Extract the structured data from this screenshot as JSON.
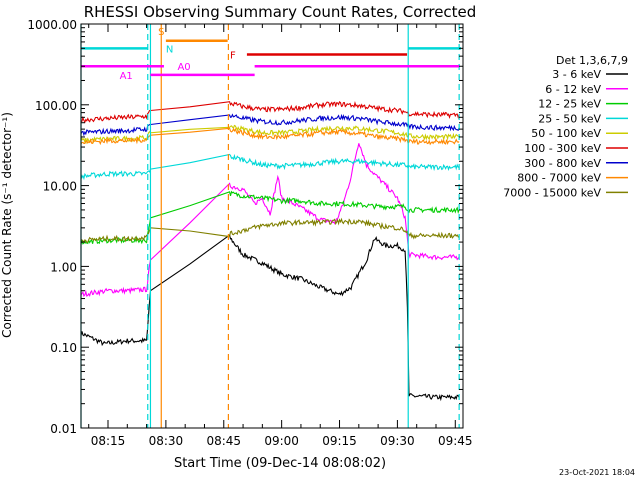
{
  "chart_data": {
    "type": "line",
    "title": "RHESSI Observing Summary Count Rates, Corrected",
    "xlabel": "Start Time (09-Dec-14 08:08:02)",
    "ylabel": "Corrected Count Rate (s⁻¹ detector⁻¹)",
    "yscale": "log",
    "ylim": [
      0.01,
      1000
    ],
    "xlim_minutes_after_0800": [
      8.0,
      107.0
    ],
    "x_ticks": [
      "08:15",
      "08:30",
      "08:45",
      "09:00",
      "09:15",
      "09:30",
      "09:45"
    ],
    "x_ticks_min": [
      15,
      30,
      45,
      60,
      75,
      90,
      105
    ],
    "y_ticks": [
      "0.01",
      "0.10",
      "1.00",
      "10.00",
      "100.00",
      "1000.00"
    ],
    "y_ticks_val": [
      0.01,
      0.1,
      1,
      10,
      100,
      1000
    ],
    "legend_title": "Det 1,3,6,7,9",
    "legend_position": "right",
    "footer_date": "23-Oct-2021 18:04",
    "flags": [
      {
        "label": "",
        "color": "#00d8d8",
        "level": 500,
        "spans": [
          [
            8.0,
            25.3
          ],
          [
            92.8,
            106.5
          ]
        ]
      },
      {
        "label": "S",
        "color": "#ff8800",
        "level": 620,
        "spans": [
          [
            30.0,
            46.0
          ]
        ]
      },
      {
        "label": "N",
        "color": "#00d8d8",
        "level": 500,
        "spans": []
      },
      {
        "label": "F",
        "color": "#dd0000",
        "level": 420,
        "spans": [
          [
            51.0,
            92.5
          ]
        ]
      },
      {
        "label": "A0",
        "color": "#ff00ff",
        "level": 300,
        "spans": [
          [
            8.0,
            29.5
          ],
          [
            53.0,
            106.0
          ]
        ]
      },
      {
        "label": "A1",
        "color": "#ff00ff",
        "level": 235,
        "spans": [
          [
            26.0,
            53.0
          ]
        ]
      }
    ],
    "vlines": [
      {
        "x": 8.0,
        "color": "#00d8d8",
        "style": "solid"
      },
      {
        "x": 25.3,
        "color": "#00d8d8",
        "style": "dashed"
      },
      {
        "x": 26.0,
        "color": "#00d8d8",
        "style": "solid"
      },
      {
        "x": 28.8,
        "color": "#ff8800",
        "style": "solid"
      },
      {
        "x": 46.2,
        "color": "#ff8800",
        "style": "dashed"
      },
      {
        "x": 92.8,
        "color": "#00d8d8",
        "style": "solid"
      },
      {
        "x": 106.0,
        "color": "#00d8d8",
        "style": "dashed"
      }
    ],
    "series": [
      {
        "name": "3 - 6 keV",
        "color": "#000000",
        "points": [
          [
            8,
            0.15
          ],
          [
            14,
            0.11
          ],
          [
            20,
            0.12
          ],
          [
            25,
            0.12
          ],
          [
            26,
            0.5
          ],
          [
            46.5,
            2.3
          ],
          [
            50,
            1.4
          ],
          [
            55,
            1.1
          ],
          [
            60,
            0.8
          ],
          [
            65,
            0.7
          ],
          [
            70,
            0.55
          ],
          [
            75,
            0.45
          ],
          [
            78,
            0.55
          ],
          [
            82,
            1.2
          ],
          [
            84,
            2.2
          ],
          [
            87,
            1.8
          ],
          [
            90,
            1.8
          ],
          [
            92,
            1.6
          ],
          [
            92.6,
            0.3
          ],
          [
            93,
            0.025
          ],
          [
            100,
            0.024
          ],
          [
            106,
            0.024
          ]
        ]
      },
      {
        "name": "6 - 12 keV",
        "color": "#ff00ff",
        "points": [
          [
            8,
            0.45
          ],
          [
            15,
            0.5
          ],
          [
            20,
            0.5
          ],
          [
            25,
            0.52
          ],
          [
            26,
            1.2
          ],
          [
            46.5,
            10
          ],
          [
            50,
            9
          ],
          [
            53,
            6
          ],
          [
            55,
            7
          ],
          [
            57,
            4.5
          ],
          [
            59,
            13
          ],
          [
            60,
            7
          ],
          [
            63,
            6
          ],
          [
            66,
            5
          ],
          [
            70,
            3.8
          ],
          [
            74,
            3.5
          ],
          [
            76,
            6
          ],
          [
            78,
            13
          ],
          [
            80,
            35
          ],
          [
            82,
            18
          ],
          [
            84,
            14
          ],
          [
            87,
            10
          ],
          [
            90,
            7
          ],
          [
            92,
            4
          ],
          [
            93,
            1.4
          ],
          [
            100,
            1.3
          ],
          [
            106,
            1.3
          ]
        ]
      },
      {
        "name": "12 - 25 keV",
        "color": "#00cc00",
        "points": [
          [
            8,
            2.0
          ],
          [
            15,
            2.1
          ],
          [
            20,
            2.1
          ],
          [
            25,
            2.1
          ],
          [
            26,
            4
          ],
          [
            46.5,
            8
          ],
          [
            50,
            7.5
          ],
          [
            55,
            7
          ],
          [
            60,
            6.5
          ],
          [
            65,
            6.5
          ],
          [
            70,
            6
          ],
          [
            75,
            6
          ],
          [
            80,
            5.8
          ],
          [
            85,
            5.5
          ],
          [
            90,
            5.5
          ],
          [
            92,
            5.5
          ],
          [
            93,
            5
          ],
          [
            100,
            5
          ],
          [
            106,
            5
          ]
        ]
      },
      {
        "name": "25 - 50 keV",
        "color": "#00d8d8",
        "points": [
          [
            8,
            13
          ],
          [
            15,
            14
          ],
          [
            20,
            14
          ],
          [
            25,
            14
          ],
          [
            26,
            16
          ],
          [
            46.5,
            23
          ],
          [
            50,
            21
          ],
          [
            55,
            18
          ],
          [
            60,
            17.5
          ],
          [
            65,
            18
          ],
          [
            70,
            19
          ],
          [
            75,
            20
          ],
          [
            80,
            20
          ],
          [
            85,
            19
          ],
          [
            90,
            18
          ],
          [
            92,
            18
          ],
          [
            93,
            17
          ],
          [
            100,
            17
          ],
          [
            106,
            17
          ]
        ]
      },
      {
        "name": "50 - 100 keV",
        "color": "#cccc00",
        "points": [
          [
            8,
            36
          ],
          [
            15,
            38
          ],
          [
            20,
            38
          ],
          [
            25,
            39
          ],
          [
            26,
            45
          ],
          [
            46.5,
            55
          ],
          [
            50,
            50
          ],
          [
            55,
            45
          ],
          [
            60,
            45
          ],
          [
            65,
            47
          ],
          [
            70,
            50
          ],
          [
            75,
            52
          ],
          [
            80,
            51
          ],
          [
            85,
            48
          ],
          [
            90,
            45
          ],
          [
            92,
            43
          ],
          [
            93,
            41
          ],
          [
            100,
            40
          ],
          [
            106,
            40
          ]
        ]
      },
      {
        "name": "100 - 300 keV",
        "color": "#dd0000",
        "points": [
          [
            8,
            65
          ],
          [
            15,
            68
          ],
          [
            20,
            70
          ],
          [
            25,
            72
          ],
          [
            26,
            85
          ],
          [
            46.5,
            105
          ],
          [
            50,
            95
          ],
          [
            55,
            87
          ],
          [
            60,
            88
          ],
          [
            65,
            92
          ],
          [
            70,
            100
          ],
          [
            75,
            102
          ],
          [
            80,
            98
          ],
          [
            85,
            90
          ],
          [
            90,
            85
          ],
          [
            92,
            82
          ],
          [
            93,
            78
          ],
          [
            100,
            75
          ],
          [
            106,
            75
          ]
        ]
      },
      {
        "name": "300 - 800 keV",
        "color": "#0000cc",
        "points": [
          [
            8,
            45
          ],
          [
            15,
            47
          ],
          [
            20,
            48
          ],
          [
            25,
            50
          ],
          [
            26,
            57
          ],
          [
            46.5,
            75
          ],
          [
            50,
            68
          ],
          [
            55,
            62
          ],
          [
            60,
            60
          ],
          [
            65,
            64
          ],
          [
            70,
            68
          ],
          [
            75,
            70
          ],
          [
            80,
            68
          ],
          [
            85,
            62
          ],
          [
            90,
            58
          ],
          [
            92,
            56
          ],
          [
            93,
            54
          ],
          [
            100,
            52
          ],
          [
            106,
            52
          ]
        ]
      },
      {
        "name": "800 - 7000 keV",
        "color": "#ff8800",
        "points": [
          [
            8,
            34
          ],
          [
            15,
            36
          ],
          [
            20,
            36
          ],
          [
            25,
            37
          ],
          [
            26,
            42
          ],
          [
            46.5,
            50
          ],
          [
            50,
            45
          ],
          [
            55,
            40
          ],
          [
            60,
            40
          ],
          [
            65,
            42
          ],
          [
            70,
            45
          ],
          [
            75,
            46
          ],
          [
            80,
            44
          ],
          [
            85,
            40
          ],
          [
            90,
            38
          ],
          [
            92,
            37
          ],
          [
            93,
            35
          ],
          [
            100,
            35
          ],
          [
            106,
            35
          ]
        ]
      },
      {
        "name": "7000 - 15000 keV",
        "color": "#808000",
        "points": [
          [
            8,
            2.1
          ],
          [
            15,
            2.2
          ],
          [
            20,
            2.2
          ],
          [
            25,
            2.3
          ],
          [
            26,
            3
          ],
          [
            46.5,
            2.5
          ],
          [
            50,
            2.8
          ],
          [
            55,
            3.2
          ],
          [
            60,
            3.4
          ],
          [
            65,
            3.5
          ],
          [
            70,
            3.5
          ],
          [
            75,
            3.6
          ],
          [
            80,
            3.6
          ],
          [
            85,
            3.2
          ],
          [
            90,
            3.0
          ],
          [
            92,
            2.8
          ],
          [
            93,
            2.4
          ],
          [
            100,
            2.4
          ],
          [
            106,
            2.4
          ]
        ]
      }
    ]
  }
}
